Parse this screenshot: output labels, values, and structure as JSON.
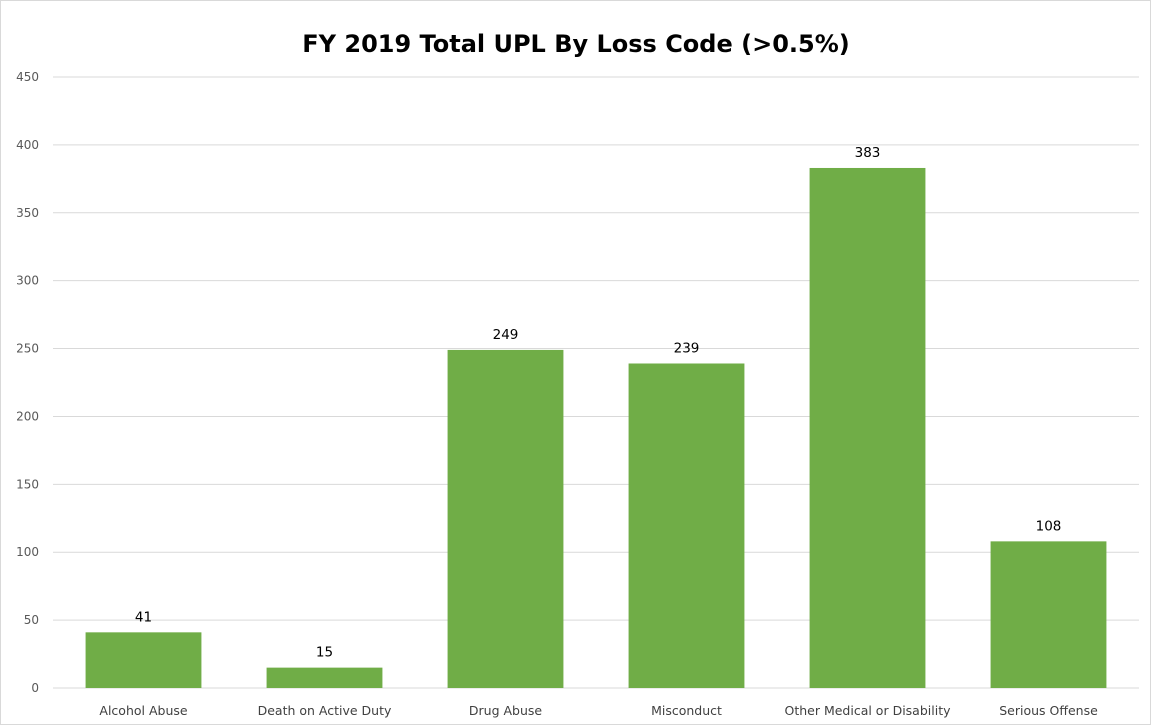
{
  "chart_data": {
    "type": "bar",
    "title": "FY 2019 Total UPL By Loss Code  (>0.5%)",
    "xlabel": "",
    "ylabel": "",
    "categories": [
      "Alcohol Abuse",
      "Death on Active Duty",
      "Drug Abuse",
      "Misconduct",
      "Other Medical or Disability",
      "Serious Offense"
    ],
    "values": [
      41,
      15,
      249,
      239,
      383,
      108
    ],
    "data_labels": [
      "41",
      "15",
      "249",
      "239",
      "383",
      "108"
    ],
    "ylim": [
      0,
      450
    ],
    "yticks": [
      0,
      50,
      100,
      150,
      200,
      250,
      300,
      350,
      400,
      450
    ],
    "grid": true,
    "legend": "none",
    "bar_color": "#70ad47"
  }
}
